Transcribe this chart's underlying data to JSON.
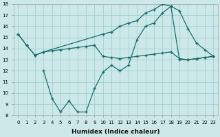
{
  "xlabel": "Humidex (Indice chaleur)",
  "bg_color": "#cce8e8",
  "grid_color": "#99cccc",
  "line_color": "#1a6b6b",
  "xlim": [
    -0.5,
    23.5
  ],
  "ylim": [
    8,
    18
  ],
  "xticks": [
    0,
    1,
    2,
    3,
    4,
    5,
    6,
    7,
    8,
    9,
    10,
    11,
    12,
    13,
    14,
    15,
    16,
    17,
    18,
    19,
    20,
    21,
    22,
    23
  ],
  "yticks": [
    8,
    9,
    10,
    11,
    12,
    13,
    14,
    15,
    16,
    17,
    18
  ],
  "line1_x": [
    0,
    1,
    2,
    3,
    10,
    11,
    12,
    13,
    14,
    15,
    16,
    17,
    18,
    19,
    20,
    21,
    22,
    23
  ],
  "line1_y": [
    15.3,
    14.3,
    13.4,
    13.7,
    15.3,
    15.5,
    16.0,
    16.3,
    16.5,
    17.2,
    17.5,
    18.0,
    17.8,
    17.4,
    15.8,
    14.5,
    13.9,
    13.3
  ],
  "line2_x": [
    0,
    1,
    2,
    3,
    4,
    5,
    6,
    7,
    8,
    9,
    10,
    11,
    12,
    13,
    14,
    15,
    16,
    17,
    18,
    19,
    20,
    21,
    22,
    23
  ],
  "line2_y": [
    15.3,
    14.3,
    13.4,
    13.7,
    13.8,
    13.9,
    14.0,
    14.1,
    14.2,
    14.3,
    13.3,
    13.2,
    13.1,
    13.2,
    13.3,
    13.4,
    13.5,
    13.6,
    13.7,
    13.1,
    13.0,
    13.1,
    13.2,
    13.3
  ],
  "line3_x": [
    3,
    4,
    5,
    6,
    7,
    8,
    9,
    10,
    11,
    12,
    13,
    14,
    15,
    16,
    17,
    18,
    19,
    20,
    21,
    22,
    23
  ],
  "line3_y": [
    12.0,
    9.5,
    8.3,
    9.3,
    8.3,
    8.3,
    10.4,
    11.9,
    12.5,
    12.0,
    12.5,
    14.8,
    16.0,
    16.3,
    17.2,
    17.8,
    13.0,
    13.0,
    13.1,
    13.2,
    13.3
  ]
}
